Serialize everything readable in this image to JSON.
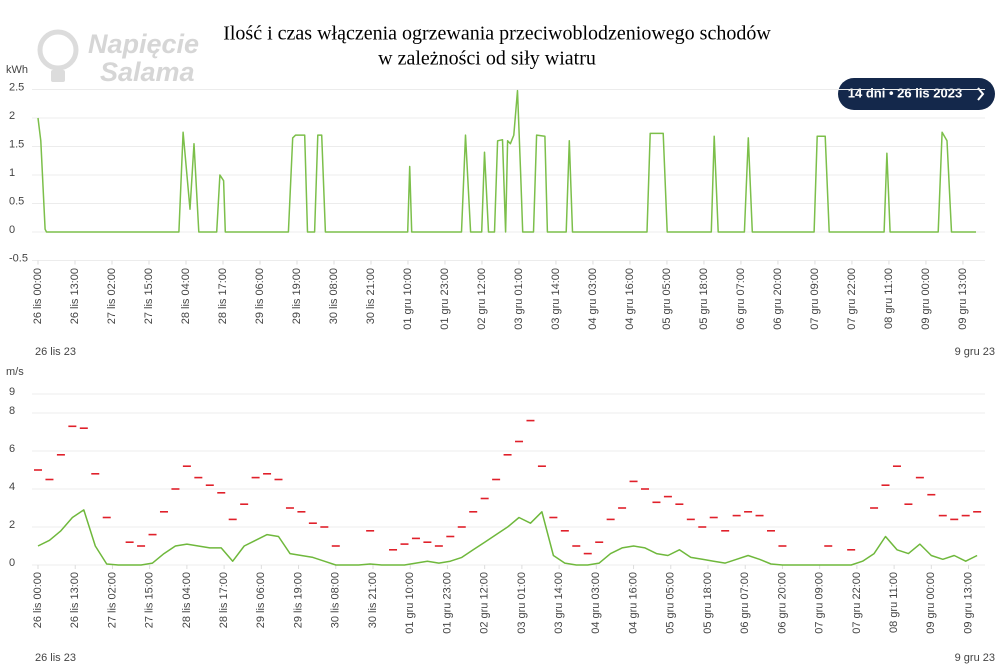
{
  "header": {
    "title": [
      "Ilość i czas włączenia ogrzewania przeciwoblodzeniowego schodów",
      "w zależności od siły wiatru"
    ],
    "logo": [
      "Napięcie",
      "Salama"
    ],
    "button": "14 dni • 26 lis 2023"
  },
  "chart_data": [
    {
      "type": "line",
      "y_unit": "kWh",
      "range_start": "26 lis 23",
      "range_end": "9 gru 23",
      "xlim": [
        0,
        331
      ],
      "ylim": [
        -0.5,
        2.5
      ],
      "yticks": [
        -0.5,
        0,
        0.5,
        1,
        1.5,
        2,
        2.5
      ],
      "grid": true,
      "xticks": [
        {
          "value": 0,
          "label": "26 lis 00:00"
        },
        {
          "value": 13,
          "label": "26 lis 13:00"
        },
        {
          "value": 26,
          "label": "27 lis 02:00"
        },
        {
          "value": 39,
          "label": "27 lis 15:00"
        },
        {
          "value": 52,
          "label": "28 lis 04:00"
        },
        {
          "value": 65,
          "label": "28 lis 17:00"
        },
        {
          "value": 78,
          "label": "29 lis 06:00"
        },
        {
          "value": 91,
          "label": "29 lis 19:00"
        },
        {
          "value": 104,
          "label": "30 lis 08:00"
        },
        {
          "value": 117,
          "label": "30 lis 21:00"
        },
        {
          "value": 130,
          "label": "01 gru 10:00"
        },
        {
          "value": 143,
          "label": "01 gru 23:00"
        },
        {
          "value": 156,
          "label": "02 gru 12:00"
        },
        {
          "value": 169,
          "label": "03 gru 01:00"
        },
        {
          "value": 182,
          "label": "03 gru 14:00"
        },
        {
          "value": 195,
          "label": "04 gru 03:00"
        },
        {
          "value": 208,
          "label": "04 gru 16:00"
        },
        {
          "value": 221,
          "label": "05 gru 05:00"
        },
        {
          "value": 234,
          "label": "05 gru 18:00"
        },
        {
          "value": 247,
          "label": "06 gru 07:00"
        },
        {
          "value": 260,
          "label": "06 gru 20:00"
        },
        {
          "value": 273,
          "label": "07 gru 09:00"
        },
        {
          "value": 286,
          "label": "07 gru 22:00"
        },
        {
          "value": 299,
          "label": "08 gru 11:00"
        },
        {
          "value": 312,
          "label": "09 gru 00:00"
        },
        {
          "value": 325,
          "label": "09 gru 13:00"
        }
      ],
      "x": [
        0,
        1,
        2.5,
        3,
        49.5,
        51,
        53.4,
        54.8,
        56.5,
        62.8,
        63.9,
        65.2,
        65.8,
        88,
        89.5,
        90.5,
        93.7,
        94.7,
        97.2,
        98.3,
        99.7,
        101,
        129.9,
        130.6,
        131.3,
        148.8,
        150.2,
        152,
        155.9,
        156.9,
        158.3,
        160.4,
        161.5,
        163.2,
        164.3,
        165,
        166,
        167.2,
        168.5,
        169.6,
        170.3,
        174.1,
        175.2,
        178.1,
        179,
        185.6,
        186.7,
        187.8,
        214,
        215.1,
        219.7,
        221.1,
        236.6,
        237.6,
        239,
        248.2,
        249.6,
        251,
        272.7,
        273.8,
        276.6,
        278,
        297.3,
        298.3,
        299.4,
        316.3,
        317.7,
        319.4,
        321,
        329.6
      ],
      "series": [
        {
          "color": "#7cbf4a",
          "mode": "line",
          "values": [
            2.0,
            1.6,
            0.05,
            0,
            0,
            1.75,
            0.4,
            1.55,
            0,
            0,
            1.0,
            0.9,
            0,
            0,
            1.65,
            1.7,
            1.7,
            0,
            0,
            1.7,
            1.7,
            0,
            0,
            1.15,
            0,
            0,
            1.7,
            0,
            0,
            1.4,
            0,
            0,
            1.6,
            1.62,
            0,
            1.6,
            1.55,
            1.7,
            2.48,
            1.0,
            0,
            0,
            1.7,
            1.68,
            0,
            0,
            1.6,
            0,
            0,
            1.73,
            1.73,
            0,
            0,
            1.68,
            0,
            0,
            1.65,
            0,
            0,
            1.68,
            1.68,
            0,
            0,
            1.38,
            0,
            0,
            1.75,
            1.6,
            0,
            0
          ]
        }
      ]
    },
    {
      "type": "line",
      "y_unit": "m/s",
      "range_start": "26 lis 23",
      "range_end": "9 gru 23",
      "xlim": [
        0,
        329
      ],
      "ylim": [
        0,
        9
      ],
      "yticks": [
        0,
        2,
        4,
        6,
        8,
        9
      ],
      "grid": true,
      "xticks": [
        {
          "value": 0,
          "label": "26 lis 00:00"
        },
        {
          "value": 13,
          "label": "26 lis 13:00"
        },
        {
          "value": 26,
          "label": "27 lis 02:00"
        },
        {
          "value": 39,
          "label": "27 lis 15:00"
        },
        {
          "value": 52,
          "label": "28 lis 04:00"
        },
        {
          "value": 65,
          "label": "28 lis 17:00"
        },
        {
          "value": 78,
          "label": "29 lis 06:00"
        },
        {
          "value": 91,
          "label": "29 lis 19:00"
        },
        {
          "value": 104,
          "label": "30 lis 08:00"
        },
        {
          "value": 117,
          "label": "30 lis 21:00"
        },
        {
          "value": 130,
          "label": "01 gru 10:00"
        },
        {
          "value": 143,
          "label": "01 gru 23:00"
        },
        {
          "value": 156,
          "label": "02 gru 12:00"
        },
        {
          "value": 169,
          "label": "03 gru 01:00"
        },
        {
          "value": 182,
          "label": "03 gru 14:00"
        },
        {
          "value": 195,
          "label": "04 gru 03:00"
        },
        {
          "value": 208,
          "label": "04 gru 16:00"
        },
        {
          "value": 221,
          "label": "05 gru 05:00"
        },
        {
          "value": 234,
          "label": "05 gru 18:00"
        },
        {
          "value": 247,
          "label": "06 gru 07:00"
        },
        {
          "value": 260,
          "label": "06 gru 20:00"
        },
        {
          "value": 273,
          "label": "07 gru 09:00"
        },
        {
          "value": 286,
          "label": "07 gru 22:00"
        },
        {
          "value": 299,
          "label": "08 gru 11:00"
        },
        {
          "value": 312,
          "label": "09 gru 00:00"
        },
        {
          "value": 325,
          "label": "09 gru 13:00"
        }
      ],
      "x": [
        0,
        4,
        8,
        12,
        16,
        20,
        24,
        28,
        32,
        36,
        40,
        44,
        48,
        52,
        56,
        60,
        64,
        68,
        72,
        76,
        80,
        84,
        88,
        92,
        96,
        100,
        104,
        108,
        112,
        116,
        120,
        124,
        128,
        132,
        136,
        140,
        144,
        148,
        152,
        156,
        160,
        164,
        168,
        172,
        176,
        180,
        184,
        188,
        192,
        196,
        200,
        204,
        208,
        212,
        216,
        220,
        224,
        228,
        232,
        236,
        240,
        244,
        248,
        252,
        256,
        260,
        264,
        268,
        272,
        276,
        280,
        284,
        288,
        292,
        296,
        300,
        304,
        308,
        312,
        316,
        320,
        324,
        328
      ],
      "series": [
        {
          "color": "#e0202a",
          "mode": "dash",
          "values": [
            5.0,
            4.5,
            5.8,
            7.3,
            7.2,
            4.8,
            2.5,
            null,
            1.2,
            1.0,
            1.6,
            2.8,
            4.0,
            5.2,
            4.6,
            4.2,
            3.8,
            2.4,
            3.2,
            4.6,
            4.8,
            4.5,
            3.0,
            2.8,
            2.2,
            2.0,
            1.0,
            null,
            null,
            1.8,
            null,
            0.8,
            1.1,
            1.4,
            1.2,
            1.0,
            1.5,
            2.0,
            2.8,
            3.5,
            4.5,
            5.8,
            6.5,
            7.6,
            5.2,
            2.5,
            1.8,
            1.0,
            0.6,
            1.2,
            2.4,
            3.0,
            4.4,
            4.0,
            3.3,
            3.6,
            3.2,
            2.4,
            2.0,
            2.5,
            1.8,
            2.6,
            2.8,
            2.6,
            1.8,
            1.0,
            null,
            null,
            null,
            1.0,
            null,
            0.8,
            null,
            3.0,
            4.2,
            5.2,
            3.2,
            4.6,
            3.7,
            2.6,
            2.4,
            2.6,
            2.8
          ]
        },
        {
          "color": "#6fb83c",
          "mode": "line",
          "values": [
            1.0,
            1.3,
            1.8,
            2.5,
            2.9,
            1.0,
            0.05,
            0,
            0,
            0,
            0.1,
            0.6,
            1.0,
            1.1,
            1.0,
            0.9,
            0.9,
            0.2,
            1.0,
            1.3,
            1.6,
            1.5,
            0.6,
            0.5,
            0.4,
            0.2,
            0,
            0,
            0,
            0.05,
            0,
            0,
            0,
            0.1,
            0.2,
            0.1,
            0.2,
            0.4,
            0.8,
            1.2,
            1.6,
            2.0,
            2.5,
            2.2,
            2.8,
            0.5,
            0.1,
            0,
            0,
            0.1,
            0.6,
            0.9,
            1.0,
            0.9,
            0.6,
            0.5,
            0.8,
            0.4,
            0.3,
            0.2,
            0.1,
            0.3,
            0.5,
            0.3,
            0.05,
            0,
            0,
            0,
            0,
            0,
            0,
            0,
            0.2,
            0.6,
            1.5,
            0.8,
            0.6,
            1.1,
            0.5,
            0.3,
            0.5,
            0.2,
            0.5
          ]
        }
      ]
    }
  ]
}
